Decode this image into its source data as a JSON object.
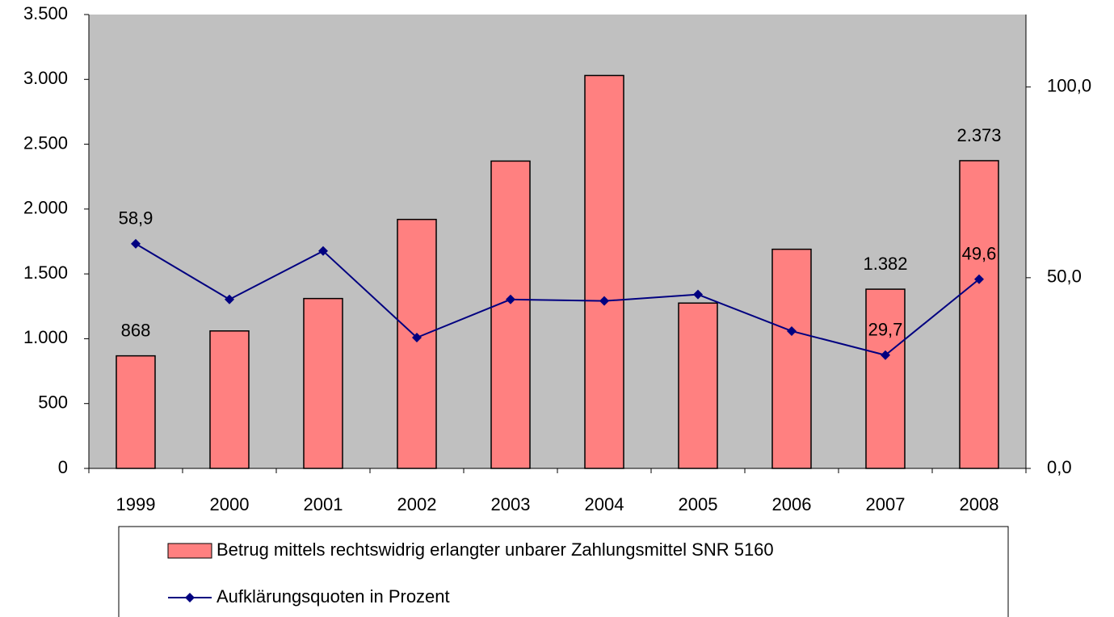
{
  "chart_data": {
    "type": "bar_line",
    "categories": [
      "1999",
      "2000",
      "2001",
      "2002",
      "2003",
      "2004",
      "2005",
      "2006",
      "2007",
      "2008"
    ],
    "series": [
      {
        "name": "Betrug mittels rechtswidrig erlangter unbarer Zahlungsmittel SNR 5160",
        "type": "bar",
        "color": "#ff8080",
        "values": [
          868,
          1060,
          1310,
          1920,
          2370,
          3030,
          1275,
          1690,
          1382,
          2373
        ],
        "value_labels": [
          "868",
          null,
          null,
          null,
          null,
          null,
          null,
          null,
          "1.382",
          "2.373"
        ]
      },
      {
        "name": "Aufklärungsquoten in Prozent",
        "type": "line",
        "axis": "y2",
        "color": "#000080",
        "values": [
          58.9,
          44.3,
          57.0,
          34.3,
          44.3,
          43.9,
          45.6,
          36.0,
          29.7,
          49.6
        ],
        "value_labels": [
          "58,9",
          null,
          null,
          null,
          null,
          null,
          null,
          null,
          "29,7",
          "49,6"
        ]
      }
    ],
    "ylim": [
      0,
      3500
    ],
    "yticks": [
      0,
      500,
      {
        "value": 1000,
        "label": "1.000"
      },
      {
        "value": 1500,
        "label": "1.500"
      },
      {
        "value": 2000,
        "label": "2.000"
      },
      {
        "value": 2500,
        "label": "2.500"
      },
      {
        "value": 3000,
        "label": "3.000"
      },
      {
        "value": 3500,
        "label": "3.500"
      }
    ],
    "y2lim": [
      0,
      119
    ],
    "y2ticks": [
      {
        "value": 0,
        "label": "0,0"
      },
      {
        "value": 50,
        "label": "50,0"
      },
      {
        "value": 100,
        "label": "100,0"
      }
    ],
    "plot_background": "#c0c0c0"
  }
}
